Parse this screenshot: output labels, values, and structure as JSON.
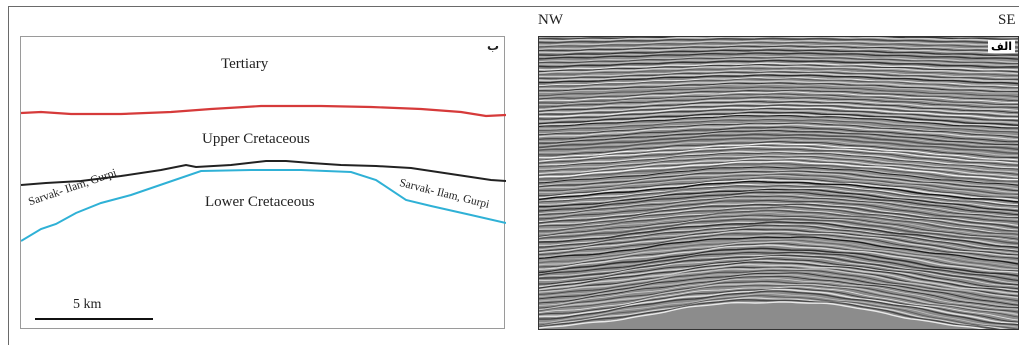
{
  "panel_b": {
    "tag": "ب",
    "units": {
      "tertiary": "Tertiary",
      "upper_cretaceous": "Upper Cretaceous",
      "lower_cretaceous": "Lower Cretaceous"
    },
    "horizon_label_left": "Sarvak- Ilam, Gurpi",
    "horizon_label_right": "Sarvak- Ilam, Gurpi",
    "scale_bar_label": "5 km",
    "colors": {
      "top_horizon": "#d63a3a",
      "middle_horizon": "#222222",
      "bottom_horizon": "#2fb1d6"
    }
  },
  "panel_a": {
    "tag": "الف",
    "left_direction": "NW",
    "right_direction": "SE"
  }
}
